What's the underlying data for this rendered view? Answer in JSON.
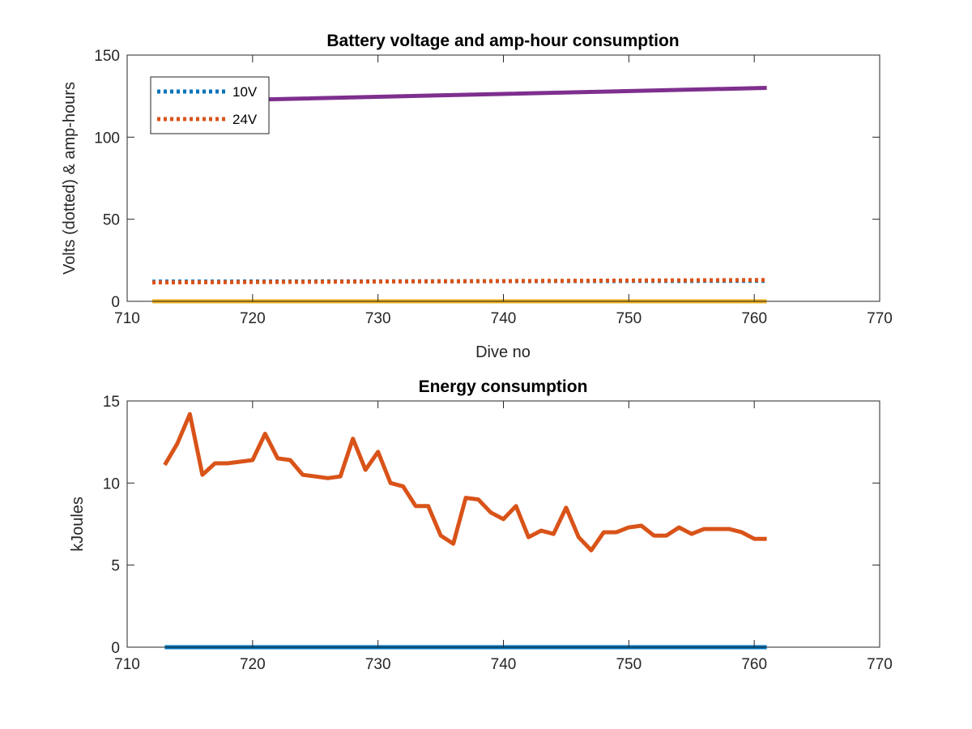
{
  "chart_data": [
    {
      "type": "line",
      "title": "Battery voltage and amp-hour consumption",
      "xlabel": "Dive no",
      "ylabel": "Volts (dotted) & amp-hours",
      "xlim": [
        710,
        770
      ],
      "ylim": [
        0,
        150
      ],
      "xticks": [
        710,
        720,
        730,
        740,
        750,
        760,
        770
      ],
      "yticks": [
        0,
        50,
        100,
        150
      ],
      "grid": false,
      "legend": "top-left",
      "series": [
        {
          "name": "10V",
          "style": "dotted",
          "color": "#0072BD",
          "x": [
            712,
            761
          ],
          "y": [
            12,
            12.5
          ]
        },
        {
          "name": "24V",
          "style": "dotted",
          "color": "#D95319",
          "x": [
            712,
            761
          ],
          "y": [
            11.5,
            13
          ]
        },
        {
          "name": "",
          "style": "solid",
          "color": "#EDB120",
          "x": [
            712,
            761
          ],
          "y": [
            0,
            0
          ]
        },
        {
          "name": "",
          "style": "solid",
          "color": "#7E2F8E",
          "x": [
            712,
            721,
            761
          ],
          "y": [
            123,
            123,
            130
          ]
        }
      ]
    },
    {
      "type": "line",
      "title": "Energy consumption",
      "xlabel": "",
      "ylabel": "kJoules",
      "xlim": [
        710,
        770
      ],
      "ylim": [
        0,
        15
      ],
      "xticks": [
        710,
        720,
        730,
        740,
        750,
        760,
        770
      ],
      "yticks": [
        0,
        5,
        10,
        15
      ],
      "grid": false,
      "series": [
        {
          "name": "",
          "style": "solid",
          "color": "#0072BD",
          "x": [
            713,
            761
          ],
          "y": [
            0,
            0
          ]
        },
        {
          "name": "",
          "style": "solid",
          "color": "#D95319",
          "x": [
            713,
            714,
            715,
            716,
            717,
            718,
            719,
            720,
            721,
            722,
            723,
            724,
            725,
            726,
            727,
            728,
            729,
            730,
            731,
            732,
            733,
            734,
            735,
            736,
            737,
            738,
            739,
            740,
            741,
            742,
            743,
            744,
            745,
            746,
            747,
            748,
            749,
            750,
            751,
            752,
            753,
            754,
            755,
            756,
            757,
            758,
            759,
            760,
            761
          ],
          "y": [
            11.1,
            12.4,
            14.2,
            10.5,
            11.2,
            11.2,
            11.3,
            11.4,
            13.0,
            11.5,
            11.4,
            10.5,
            10.4,
            10.3,
            10.4,
            12.7,
            10.8,
            11.9,
            10.0,
            9.8,
            8.6,
            8.6,
            6.8,
            6.3,
            9.1,
            9.0,
            8.2,
            7.8,
            8.6,
            6.7,
            7.1,
            6.9,
            8.5,
            6.7,
            5.9,
            7.0,
            7.0,
            7.3,
            7.4,
            6.8,
            6.8,
            7.3,
            6.9,
            7.2,
            7.2,
            7.2,
            7.0,
            6.6,
            6.6
          ]
        }
      ]
    }
  ]
}
